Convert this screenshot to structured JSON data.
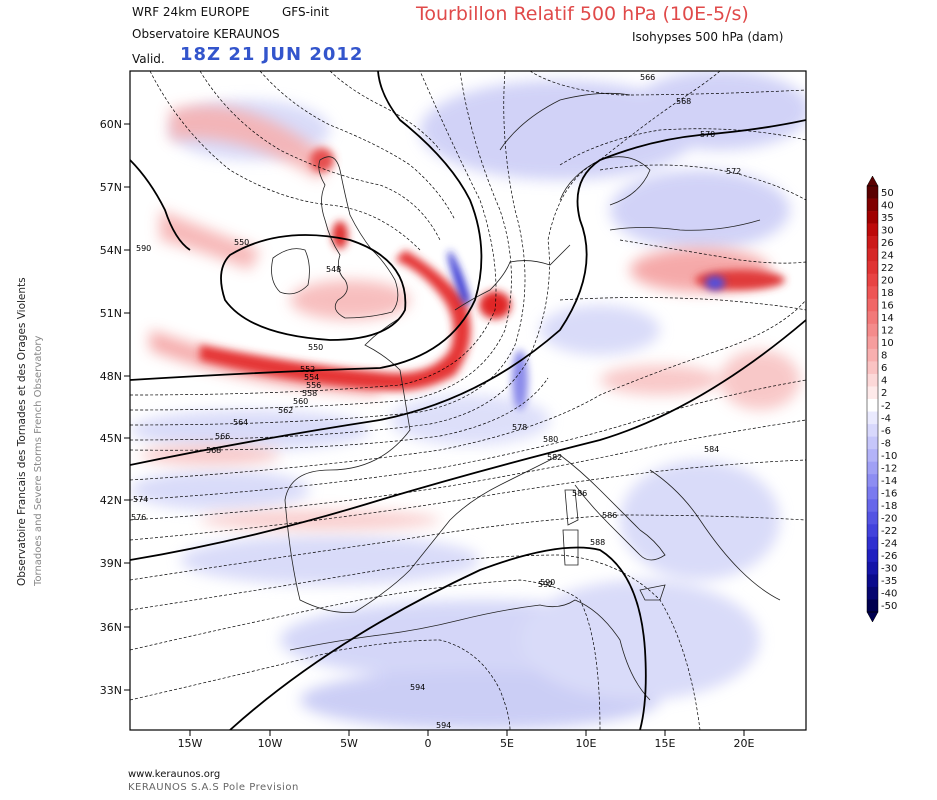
{
  "header": {
    "model": "WRF 24km EUROPE",
    "init": "GFS-init",
    "observatory": "Observatoire KERAUNOS",
    "valid_label": "Valid.",
    "valid_date": "18Z 21 JUN 2012",
    "title": "Tourbillon Relatif 500 hPa (10E-5/s)",
    "subtitle": "Isohypses 500 hPa (dam)"
  },
  "side_text": {
    "french": "Observatoire Francais des Tornades et des Orages Violents",
    "english": "Tornadoes and Severe Storms French Observatory"
  },
  "footer": {
    "url": "www.keraunos.org",
    "company": "KERAUNOS S.A.S Pole Prevision"
  },
  "map": {
    "lat_labels": [
      "60N",
      "57N",
      "54N",
      "51N",
      "48N",
      "45N",
      "42N",
      "39N",
      "36N",
      "33N"
    ],
    "lon_labels": [
      "15W",
      "10W",
      "5W",
      "0",
      "5E",
      "10E",
      "15E",
      "20E"
    ],
    "contour_labels": [
      "548",
      "550",
      "550",
      "552",
      "554",
      "556",
      "558",
      "560",
      "562",
      "564",
      "566",
      "568",
      "574",
      "576",
      "578",
      "580",
      "582",
      "584",
      "586",
      "586",
      "588",
      "590",
      "592",
      "594",
      "594",
      "566",
      "568",
      "570",
      "572",
      "590"
    ]
  },
  "colorbar": {
    "labels": [
      "50",
      "40",
      "35",
      "30",
      "26",
      "24",
      "22",
      "20",
      "18",
      "16",
      "14",
      "12",
      "10",
      "8",
      "6",
      "4",
      "2",
      "-2",
      "-4",
      "-6",
      "-8",
      "-10",
      "-12",
      "-14",
      "-16",
      "-18",
      "-20",
      "-22",
      "-24",
      "-26",
      "-30",
      "-35",
      "-40",
      "-50"
    ],
    "colors": [
      "#5a0000",
      "#800000",
      "#a00000",
      "#bd0a0a",
      "#cc1a1a",
      "#d62828",
      "#e03434",
      "#e84444",
      "#ee5555",
      "#f06767",
      "#f27979",
      "#f48b8b",
      "#f69d9d",
      "#f8afaf",
      "#fac3c3",
      "#fcd8d8",
      "#feeaea",
      "#ffffff",
      "#eaeafe",
      "#d8d8fc",
      "#c6c6fa",
      "#b3b3f8",
      "#a0a0f5",
      "#8d8df2",
      "#7a7aef",
      "#6767ea",
      "#5454e3",
      "#4242dc",
      "#3030d0",
      "#2020c0",
      "#1414a8",
      "#0a0a8c",
      "#050570",
      "#000050"
    ]
  },
  "accent_colors": {
    "title_red": "#e04a4a",
    "date_blue": "#3355cc"
  }
}
